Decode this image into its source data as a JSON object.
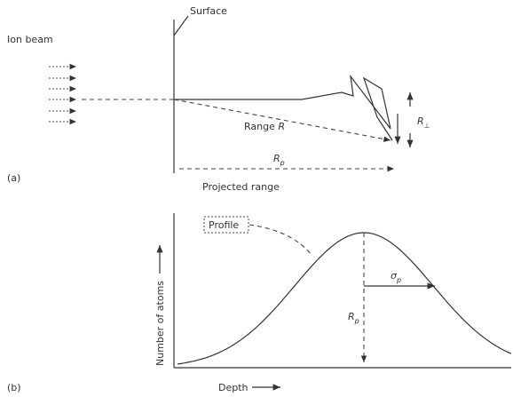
{
  "part_a": {
    "label": "(a)",
    "ion_beam": "Ion beam",
    "surface": "Surface",
    "range": {
      "main": "Range",
      "symbol": "R"
    },
    "projected_symbol": {
      "main": "R",
      "sub": "p"
    },
    "perp_symbol": {
      "main": "R",
      "sub": "⊥"
    },
    "projected_range": "Projected range"
  },
  "part_b": {
    "label": "(b)",
    "profile": "Profile",
    "sigma": {
      "main": "σ",
      "sub": "p"
    },
    "peak_symbol": {
      "main": "R",
      "sub": "p"
    },
    "y_axis": "Number of atoms",
    "x_axis": "Depth"
  }
}
